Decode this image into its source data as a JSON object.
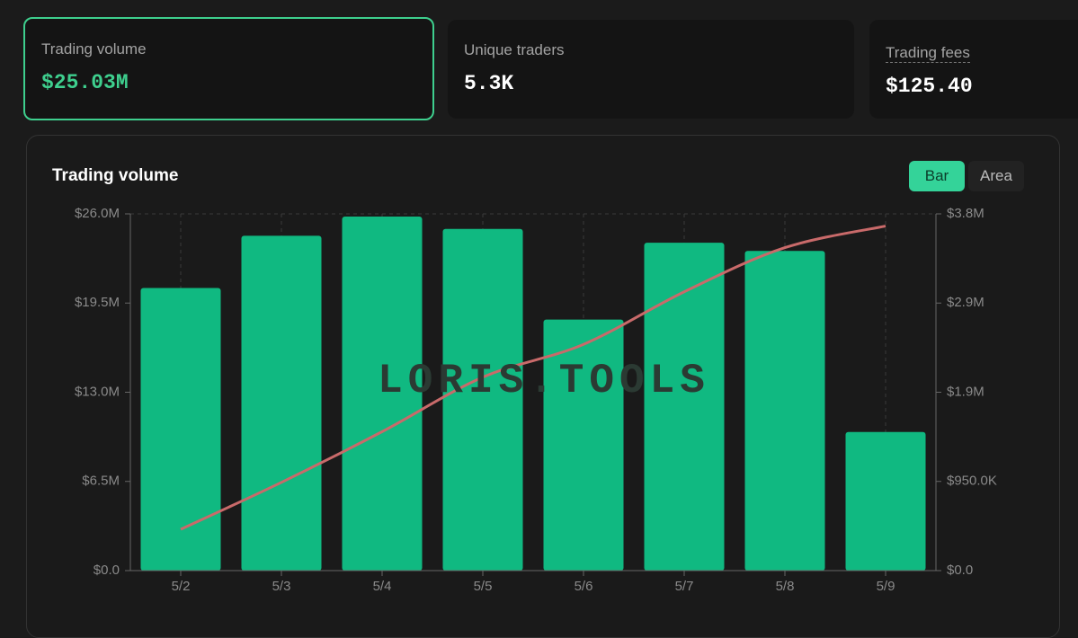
{
  "cards": [
    {
      "label": "Trading volume",
      "value": "$25.03M"
    },
    {
      "label": "Unique traders",
      "value": "5.3K"
    },
    {
      "label": "Trading fees",
      "value": "$125.40"
    }
  ],
  "toggle": [
    "Bar",
    "Area"
  ],
  "watermark": "LORIS.TOOLS",
  "chart_data": {
    "type": "bar-line",
    "title": "Trading volume",
    "categories": [
      "5/2",
      "5/3",
      "5/4",
      "5/5",
      "5/6",
      "5/7",
      "5/8",
      "5/9"
    ],
    "series": [
      {
        "color": "#10b981",
        "values": [
          20600000,
          24400000,
          25800000,
          24900000,
          18300000,
          23900000,
          23300000,
          10100000
        ]
      },
      {
        "color": "#c96a6a",
        "axis": "y2",
        "values": [
          440000,
          940000,
          1480000,
          2060000,
          2410000,
          2970000,
          3440000,
          3670000
        ]
      }
    ],
    "ylim": [
      0,
      26000000
    ],
    "yticks": [
      {
        "value": 0,
        "label": "$0.0"
      },
      {
        "value": 6500000,
        "label": "$6.5M"
      },
      {
        "value": 13000000,
        "label": "$13.0M"
      },
      {
        "value": 19500000,
        "label": "$19.5M"
      },
      {
        "value": 26000000,
        "label": "$26.0M"
      }
    ],
    "y2lim": [
      0,
      3800000
    ],
    "y2ticks": [
      {
        "value": 0,
        "label": "$0.0"
      },
      {
        "value": 950000,
        "label": "$950.0K"
      },
      {
        "value": 1900000,
        "label": "$1.9M"
      },
      {
        "value": 2850000,
        "label": "$2.9M"
      },
      {
        "value": 3800000,
        "label": "$3.8M"
      }
    ],
    "grid": true
  }
}
